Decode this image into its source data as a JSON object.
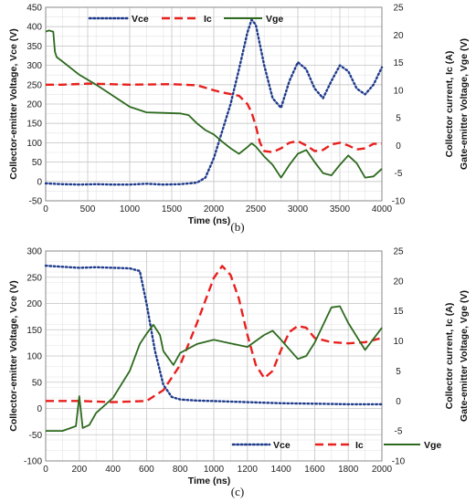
{
  "chart_data": [
    {
      "type": "line",
      "caption": "(b)",
      "xlabel": "Time  (ns)",
      "ylabel_left": "Collector-emitter Voltage, Vce (V)",
      "ylabel_right_1": "Collector current, Ic (A)",
      "ylabel_right_2": "Gate-emitter Voltage, Vge (V)",
      "xlim": [
        0,
        4000
      ],
      "xticks": [
        0,
        500,
        1000,
        1500,
        2000,
        2500,
        3000,
        3500,
        4000
      ],
      "ylim_left": [
        -50,
        450
      ],
      "yticks_left": [
        -50,
        0,
        50,
        100,
        150,
        200,
        250,
        300,
        350,
        400,
        450
      ],
      "ylim_right": [
        -10,
        25
      ],
      "yticks_right": [
        -10,
        -5,
        0,
        5,
        10,
        15,
        20,
        25
      ],
      "grid": true,
      "legend_position": "top",
      "series": [
        {
          "name": "Vce",
          "axis": "left",
          "color": "#1f3b8c",
          "style": "dotted",
          "x": [
            0,
            200,
            400,
            600,
            800,
            1000,
            1200,
            1400,
            1600,
            1800,
            1900,
            2000,
            2100,
            2200,
            2300,
            2400,
            2450,
            2500,
            2600,
            2700,
            2800,
            2900,
            3000,
            3100,
            3200,
            3300,
            3400,
            3500,
            3600,
            3700,
            3800,
            3900,
            4000
          ],
          "y": [
            -5,
            -7,
            -8,
            -7,
            -8,
            -8,
            -6,
            -8,
            -7,
            -3,
            10,
            60,
            130,
            200,
            290,
            385,
            418,
            405,
            300,
            215,
            190,
            260,
            308,
            290,
            240,
            215,
            260,
            300,
            285,
            240,
            225,
            250,
            295
          ]
        },
        {
          "name": "Ic",
          "axis": "right",
          "color": "#e8201e",
          "style": "dashed",
          "x": [
            0,
            200,
            500,
            1000,
            1500,
            1800,
            2000,
            2100,
            2200,
            2300,
            2400,
            2450,
            2500,
            2550,
            2600,
            2700,
            2800,
            2900,
            3000,
            3100,
            3200,
            3300,
            3400,
            3500,
            3600,
            3700,
            3800,
            3900,
            4000
          ],
          "y": [
            11,
            11,
            11.2,
            11,
            11.1,
            10.9,
            10,
            9.6,
            9.3,
            9,
            7.5,
            6,
            3.5,
            0.5,
            -1,
            -1.2,
            -0.5,
            0.5,
            0.8,
            0,
            -1,
            -0.8,
            0.2,
            0.5,
            0,
            -0.7,
            -0.5,
            0.3,
            0.3
          ]
        },
        {
          "name": "Vge",
          "axis": "right",
          "color": "#2d6a1e",
          "style": "solid",
          "x": [
            0,
            40,
            90,
            110,
            130,
            200,
            400,
            600,
            800,
            1000,
            1200,
            1400,
            1600,
            1700,
            1800,
            1900,
            2000,
            2100,
            2200,
            2300,
            2400,
            2450,
            2500,
            2600,
            2700,
            2800,
            2900,
            3000,
            3100,
            3200,
            3300,
            3400,
            3500,
            3600,
            3700,
            3800,
            3900,
            4000
          ],
          "y": [
            20.6,
            20.8,
            20.6,
            17,
            16,
            15.2,
            12.8,
            11,
            9,
            7,
            6,
            5.9,
            5.8,
            5.5,
            4,
            2.8,
            2,
            0.7,
            -0.5,
            -1.5,
            -0.3,
            0.4,
            -0.2,
            -2,
            -3.5,
            -5.8,
            -3.5,
            -1.5,
            -0.8,
            -3,
            -5,
            -5.4,
            -3.5,
            -1.8,
            -3.2,
            -5.8,
            -5.6,
            -4.2
          ]
        }
      ]
    },
    {
      "type": "line",
      "caption": "(c)",
      "xlabel": "Time  (ns)",
      "ylabel_left": "Collector-emitter Voltage, Vce (V)",
      "ylabel_right_1": "Collector current, Ic (A)",
      "ylabel_right_2": "Gate-emitter Voltage, Vge (V)",
      "xlim": [
        0,
        2000
      ],
      "xticks": [
        0,
        200,
        400,
        600,
        800,
        1000,
        1200,
        1400,
        1600,
        1800,
        2000
      ],
      "ylim_left": [
        -100,
        300
      ],
      "yticks_left": [
        -100,
        -50,
        0,
        50,
        100,
        150,
        200,
        250,
        300
      ],
      "ylim_right": [
        -10,
        25
      ],
      "yticks_right": [
        -10,
        -5,
        0,
        5,
        10,
        15,
        20,
        25
      ],
      "grid": true,
      "legend_position": "bottom",
      "series": [
        {
          "name": "Vce",
          "axis": "left",
          "color": "#1f3b8c",
          "style": "dotted",
          "x": [
            0,
            100,
            200,
            300,
            400,
            500,
            560,
            600,
            650,
            700,
            750,
            800,
            900,
            1000,
            1200,
            1400,
            1600,
            1800,
            2000
          ],
          "y": [
            272,
            270,
            268,
            269,
            268,
            267,
            262,
            200,
            110,
            45,
            22,
            17,
            15,
            14,
            12,
            10,
            9,
            8,
            8
          ]
        },
        {
          "name": "Ic",
          "axis": "right",
          "color": "#e8201e",
          "style": "dashed",
          "x": [
            0,
            200,
            400,
            600,
            700,
            800,
            900,
            1000,
            1050,
            1100,
            1150,
            1200,
            1250,
            1300,
            1350,
            1400,
            1450,
            1500,
            1550,
            1600,
            1700,
            1800,
            1900,
            2000
          ],
          "y": [
            0,
            0,
            -0.2,
            0,
            1.8,
            6,
            13,
            20.5,
            22.5,
            21,
            17,
            11,
            6,
            3.8,
            5,
            8.5,
            11.5,
            12.5,
            12.2,
            10.5,
            9.8,
            9.6,
            9.8,
            10.5
          ]
        },
        {
          "name": "Vge",
          "axis": "right",
          "color": "#2d6a1e",
          "style": "solid",
          "x": [
            0,
            100,
            180,
            200,
            220,
            260,
            300,
            400,
            500,
            560,
            600,
            640,
            680,
            700,
            760,
            800,
            900,
            1000,
            1100,
            1200,
            1300,
            1350,
            1400,
            1500,
            1550,
            1600,
            1700,
            1750,
            1800,
            1900,
            2000
          ],
          "y": [
            -5,
            -5,
            -4.2,
            0.8,
            -4.5,
            -4,
            -2,
            0.5,
            5,
            9.5,
            11.2,
            12.7,
            11,
            8.3,
            6,
            8,
            9.5,
            10.2,
            9.6,
            9,
            11,
            11.7,
            10.2,
            7,
            7.5,
            9.7,
            15.6,
            15.8,
            13,
            8.5,
            12.2
          ]
        }
      ]
    }
  ]
}
